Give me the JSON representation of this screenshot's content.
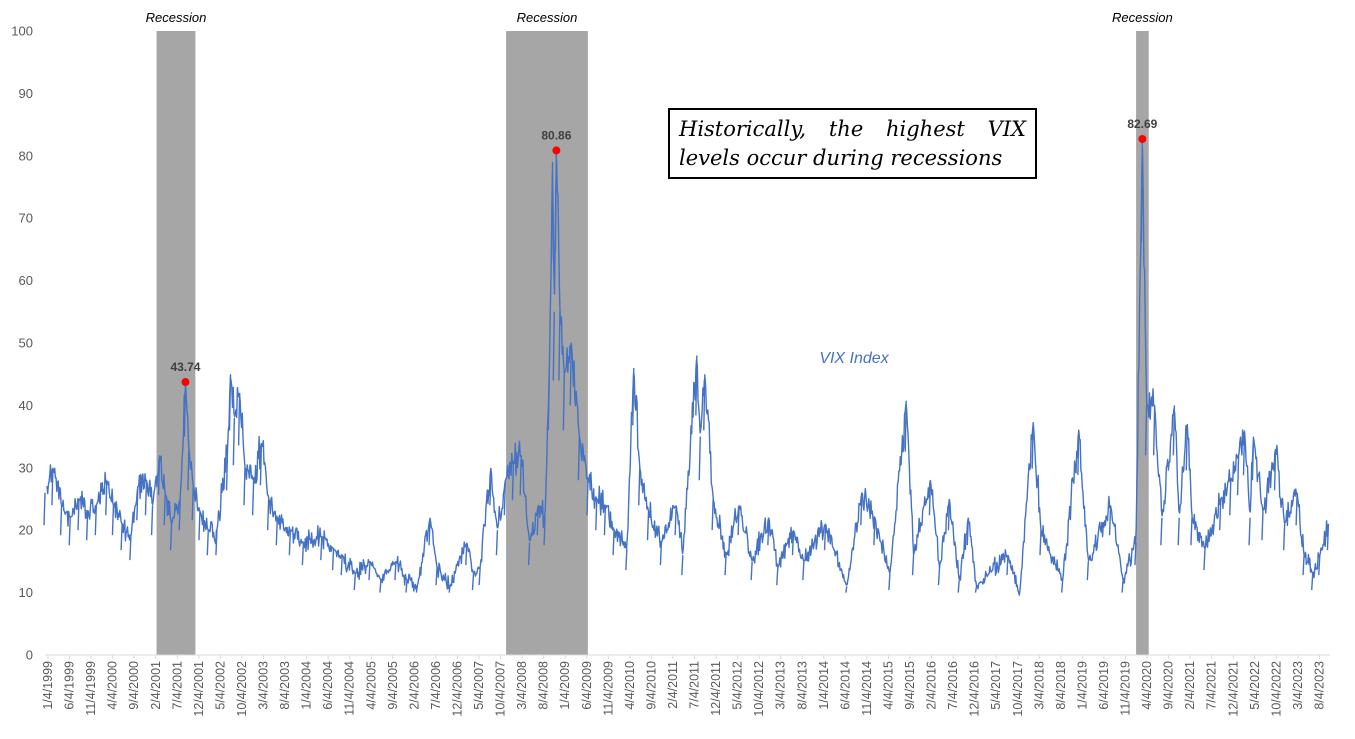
{
  "chart_data": {
    "type": "line",
    "series": [
      {
        "name": "VIX Index",
        "color": "#4472C4",
        "points": [
          [
            "1999-01-04",
            26
          ],
          [
            "1999-03-01",
            30
          ],
          [
            "1999-05-01",
            24
          ],
          [
            "1999-07-01",
            22
          ],
          [
            "1999-09-01",
            25
          ],
          [
            "1999-11-01",
            23
          ],
          [
            "2000-01-01",
            24
          ],
          [
            "2000-03-15",
            28
          ],
          [
            "2000-05-01",
            24
          ],
          [
            "2000-07-01",
            21
          ],
          [
            "2000-09-01",
            19
          ],
          [
            "2000-10-20",
            27
          ],
          [
            "2000-12-20",
            28
          ],
          [
            "2001-02-01",
            24
          ],
          [
            "2001-03-22",
            32
          ],
          [
            "2001-05-01",
            26
          ],
          [
            "2001-06-15",
            21
          ],
          [
            "2001-08-15",
            25
          ],
          [
            "2001-09-21",
            43.74
          ],
          [
            "2001-10-15",
            33
          ],
          [
            "2001-11-15",
            27
          ],
          [
            "2002-01-01",
            23
          ],
          [
            "2002-03-01",
            20
          ],
          [
            "2002-05-01",
            20
          ],
          [
            "2002-07-15",
            33
          ],
          [
            "2002-08-05",
            45
          ],
          [
            "2002-09-01",
            38
          ],
          [
            "2002-10-08",
            42
          ],
          [
            "2002-11-15",
            30
          ],
          [
            "2003-01-15",
            28
          ],
          [
            "2003-03-11",
            34
          ],
          [
            "2003-05-01",
            25
          ],
          [
            "2003-07-01",
            22
          ],
          [
            "2003-10-01",
            20
          ],
          [
            "2004-01-01",
            18
          ],
          [
            "2004-05-10",
            19
          ],
          [
            "2004-08-01",
            17
          ],
          [
            "2004-10-01",
            16
          ],
          [
            "2005-01-01",
            13
          ],
          [
            "2005-04-15",
            15
          ],
          [
            "2005-07-01",
            12
          ],
          [
            "2005-10-15",
            15
          ],
          [
            "2006-01-01",
            12
          ],
          [
            "2006-03-15",
            11
          ],
          [
            "2006-06-13",
            22
          ],
          [
            "2006-08-01",
            14
          ],
          [
            "2006-11-01",
            11
          ],
          [
            "2007-02-27",
            18
          ],
          [
            "2007-04-15",
            13
          ],
          [
            "2007-06-01",
            14
          ],
          [
            "2007-08-16",
            30
          ],
          [
            "2007-10-01",
            20
          ],
          [
            "2007-11-26",
            28
          ],
          [
            "2008-01-22",
            31
          ],
          [
            "2008-03-17",
            32
          ],
          [
            "2008-05-15",
            18
          ],
          [
            "2008-07-15",
            24
          ],
          [
            "2008-09-01",
            22
          ],
          [
            "2008-10-01",
            45
          ],
          [
            "2008-10-24",
            79
          ],
          [
            "2008-11-05",
            55
          ],
          [
            "2008-11-20",
            80.86
          ],
          [
            "2008-12-15",
            55
          ],
          [
            "2009-01-15",
            45
          ],
          [
            "2009-03-05",
            50
          ],
          [
            "2009-05-01",
            35
          ],
          [
            "2009-07-01",
            28
          ],
          [
            "2009-09-01",
            25
          ],
          [
            "2009-11-01",
            24
          ],
          [
            "2010-01-01",
            20
          ],
          [
            "2010-04-01",
            17
          ],
          [
            "2010-05-20",
            46
          ],
          [
            "2010-07-01",
            30
          ],
          [
            "2010-09-01",
            23
          ],
          [
            "2010-12-01",
            18
          ],
          [
            "2011-03-15",
            24
          ],
          [
            "2011-05-01",
            16
          ],
          [
            "2011-08-08",
            48
          ],
          [
            "2011-09-01",
            35
          ],
          [
            "2011-10-03",
            45
          ],
          [
            "2011-12-01",
            25
          ],
          [
            "2012-03-01",
            16
          ],
          [
            "2012-06-01",
            24
          ],
          [
            "2012-09-01",
            15
          ],
          [
            "2012-12-28",
            22
          ],
          [
            "2013-03-01",
            14
          ],
          [
            "2013-06-20",
            20
          ],
          [
            "2013-09-01",
            15
          ],
          [
            "2014-02-01",
            21
          ],
          [
            "2014-07-01",
            11
          ],
          [
            "2014-10-15",
            26
          ],
          [
            "2015-01-15",
            22
          ],
          [
            "2015-05-01",
            13
          ],
          [
            "2015-08-24",
            40.74
          ],
          [
            "2015-10-15",
            16
          ],
          [
            "2016-02-11",
            28
          ],
          [
            "2016-04-15",
            14
          ],
          [
            "2016-06-24",
            25
          ],
          [
            "2016-09-01",
            12
          ],
          [
            "2016-11-04",
            22
          ],
          [
            "2017-01-01",
            11
          ],
          [
            "2017-08-11",
            16
          ],
          [
            "2017-11-01",
            9.5
          ],
          [
            "2018-02-05",
            37.32
          ],
          [
            "2018-04-01",
            20
          ],
          [
            "2018-09-01",
            12
          ],
          [
            "2018-12-24",
            36.07
          ],
          [
            "2019-03-01",
            15
          ],
          [
            "2019-08-05",
            24
          ],
          [
            "2019-11-01",
            12
          ],
          [
            "2020-01-31",
            18
          ],
          [
            "2020-03-16",
            82.69
          ],
          [
            "2020-04-15",
            40
          ],
          [
            "2020-06-11",
            40
          ],
          [
            "2020-08-01",
            22
          ],
          [
            "2020-10-28",
            40
          ],
          [
            "2020-12-01",
            22
          ],
          [
            "2021-01-27",
            37
          ],
          [
            "2021-03-01",
            22
          ],
          [
            "2021-06-01",
            17
          ],
          [
            "2021-09-20",
            25
          ],
          [
            "2021-11-30",
            28
          ],
          [
            "2022-01-24",
            32
          ],
          [
            "2022-03-07",
            36
          ],
          [
            "2022-04-15",
            22
          ],
          [
            "2022-05-09",
            35
          ],
          [
            "2022-07-15",
            23
          ],
          [
            "2022-10-12",
            33
          ],
          [
            "2022-12-15",
            21
          ],
          [
            "2023-03-13",
            26
          ],
          [
            "2023-05-01",
            16
          ],
          [
            "2023-07-01",
            13
          ],
          [
            "2023-08-20",
            16
          ],
          [
            "2023-10-20",
            21
          ]
        ]
      }
    ],
    "y_ticks": [
      "0",
      "10",
      "20",
      "30",
      "40",
      "50",
      "60",
      "70",
      "80",
      "90",
      "100"
    ],
    "x_ticks": [
      "1/4/1999",
      "6/4/1999",
      "11/4/1999",
      "4/4/2000",
      "9/4/2000",
      "2/4/2001",
      "7/4/2001",
      "12/4/2001",
      "5/4/2002",
      "10/4/2002",
      "3/4/2003",
      "8/4/2003",
      "1/4/2004",
      "6/4/2004",
      "11/4/2004",
      "4/4/2005",
      "9/4/2005",
      "2/4/2006",
      "7/4/2006",
      "12/4/2006",
      "5/4/2007",
      "10/4/2007",
      "3/4/2008",
      "8/4/2008",
      "1/4/2009",
      "6/4/2009",
      "11/4/2009",
      "4/4/2010",
      "9/4/2010",
      "2/4/2011",
      "7/4/2011",
      "12/4/2011",
      "5/4/2012",
      "10/4/2012",
      "3/4/2013",
      "8/4/2013",
      "1/4/2014",
      "6/4/2014",
      "11/4/2014",
      "4/4/2015",
      "9/4/2015",
      "2/4/2016",
      "7/4/2016",
      "12/4/2016",
      "5/4/2017",
      "10/4/2017",
      "3/4/2018",
      "8/4/2018",
      "1/4/2019",
      "6/4/2019",
      "11/4/2019",
      "4/4/2020",
      "9/4/2020",
      "2/4/2021",
      "7/4/2021",
      "12/4/2021",
      "5/4/2022",
      "10/4/2022",
      "3/4/2023",
      "8/4/2023"
    ],
    "xlim": [
      "1999-01-04",
      "2023-10-31"
    ],
    "ylim": [
      0,
      100
    ],
    "grid": false,
    "recessions": [
      {
        "label": "Recession",
        "start": "2001-03-01",
        "end": "2001-11-30"
      },
      {
        "label": "Recession",
        "start": "2007-12-01",
        "end": "2009-06-30"
      },
      {
        "label": "Recession",
        "start": "2020-02-01",
        "end": "2020-04-30"
      }
    ],
    "peaks": [
      {
        "date": "2001-09-21",
        "value": 43.74,
        "label": "43.74"
      },
      {
        "date": "2008-11-20",
        "value": 80.86,
        "label": "80.86"
      },
      {
        "date": "2020-03-16",
        "value": 82.69,
        "label": "82.69"
      }
    ],
    "series_label": "VIX Index",
    "recession_color": "#A6A6A6",
    "peak_color": "#FF0000"
  },
  "annotation": {
    "text": "Historically, the highest VIX levels occur during recessions"
  }
}
